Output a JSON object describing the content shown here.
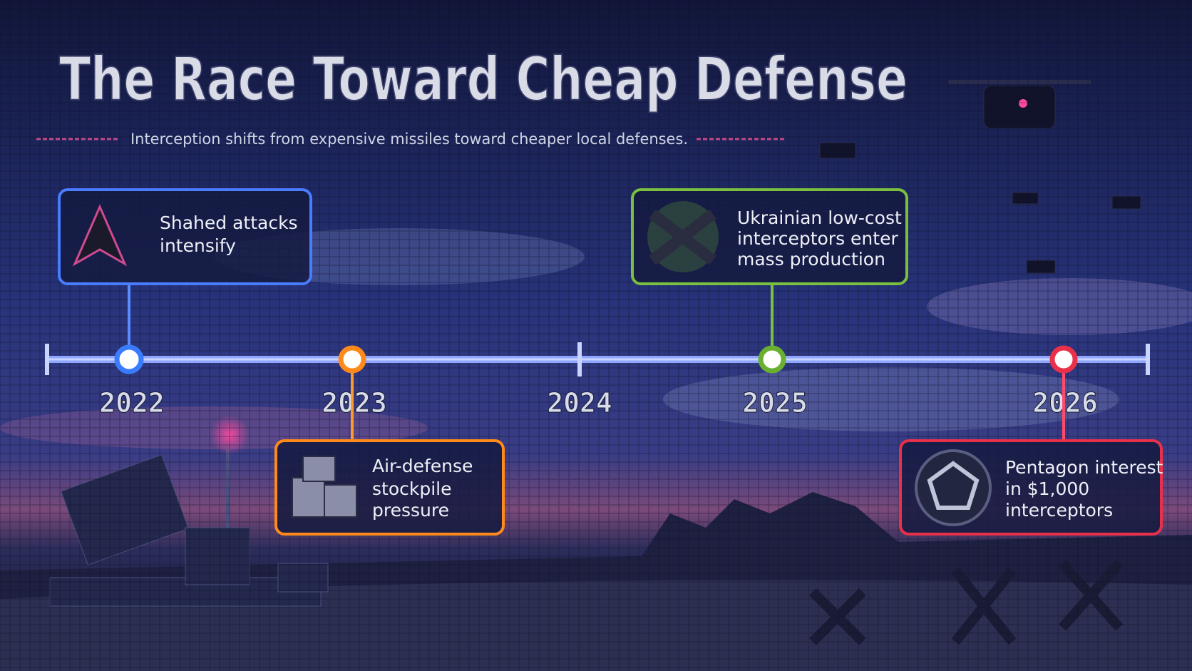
{
  "header": {
    "title": "The Race Toward Cheap Defense",
    "subtitle": "Interception shifts from expensive missiles toward cheaper local defenses."
  },
  "timeline": {
    "years": [
      "2022",
      "2023",
      "2024",
      "2025",
      "2026"
    ]
  },
  "events": [
    {
      "lines": [
        "Shahed attacks",
        "intensify"
      ]
    },
    {
      "lines": [
        "Air-defense",
        "stockpile",
        "pressure"
      ]
    },
    {
      "lines": [
        "Ukrainian low-cost",
        "interceptors enter",
        "mass production"
      ]
    },
    {
      "lines": [
        "Pentagon interest",
        "in $1,000",
        "interceptors"
      ]
    }
  ]
}
